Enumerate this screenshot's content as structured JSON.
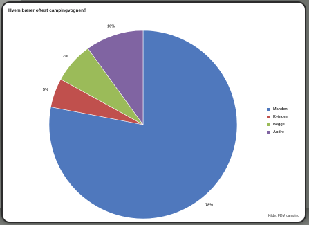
{
  "chart_data": {
    "type": "pie",
    "title": "Hvem bærer oftest campingvognen?",
    "series": [
      {
        "name": "Manden",
        "label": "78%",
        "value": 78,
        "color": "#4f78bd"
      },
      {
        "name": "Kvinden",
        "label": "5%",
        "value": 5,
        "color": "#c0504d"
      },
      {
        "name": "Begge",
        "label": "7%",
        "value": 7,
        "color": "#9bbb59"
      },
      {
        "name": "Andre",
        "label": "10%",
        "value": 10,
        "color": "#8064a2"
      }
    ],
    "legend_placement": "right",
    "source": "Kilde: FDM camping"
  }
}
